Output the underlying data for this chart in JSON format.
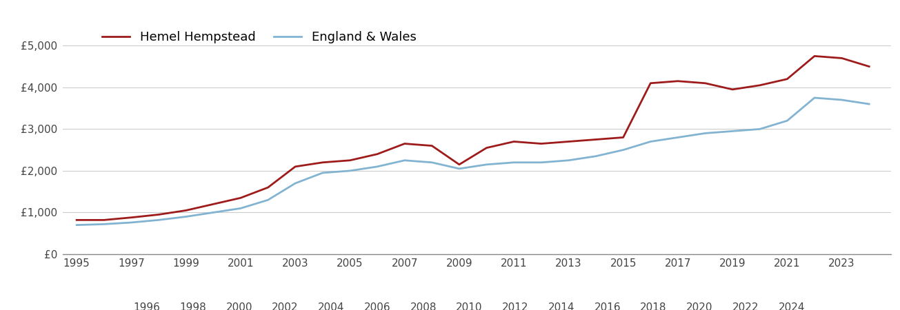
{
  "hemel_years": [
    1995,
    1996,
    1997,
    1998,
    1999,
    2000,
    2001,
    2002,
    2003,
    2004,
    2005,
    2006,
    2007,
    2008,
    2009,
    2010,
    2011,
    2012,
    2013,
    2014,
    2015,
    2016,
    2017,
    2018,
    2019,
    2020,
    2021,
    2022,
    2023,
    2024
  ],
  "hemel_values": [
    820,
    820,
    880,
    950,
    1050,
    1200,
    1350,
    1600,
    2100,
    2200,
    2250,
    2400,
    2650,
    2600,
    2150,
    2550,
    2700,
    2650,
    2700,
    2750,
    2800,
    4100,
    4150,
    4100,
    3950,
    4050,
    4200,
    4750,
    4700,
    4500
  ],
  "england_years": [
    1995,
    1996,
    1997,
    1998,
    1999,
    2000,
    2001,
    2002,
    2003,
    2004,
    2005,
    2006,
    2007,
    2008,
    2009,
    2010,
    2011,
    2012,
    2013,
    2014,
    2015,
    2016,
    2017,
    2018,
    2019,
    2020,
    2021,
    2022,
    2023,
    2024
  ],
  "england_values": [
    700,
    720,
    760,
    820,
    900,
    1000,
    1100,
    1300,
    1700,
    1950,
    2000,
    2100,
    2250,
    2200,
    2050,
    2150,
    2200,
    2200,
    2250,
    2350,
    2500,
    2700,
    2800,
    2900,
    2950,
    3000,
    3200,
    3750,
    3700,
    3600
  ],
  "hemel_color": "#9e1b1b",
  "england_color": "#82b4d2",
  "hemel_label": "Hemel Hempstead",
  "england_label": "England & Wales",
  "ylim": [
    0,
    5500
  ],
  "yticks": [
    0,
    1000,
    2000,
    3000,
    4000,
    5000
  ],
  "ytick_labels": [
    "£0",
    "£1,000",
    "£2,000",
    "£3,000",
    "£4,000",
    "£5,000"
  ],
  "line_width": 2.0,
  "background_color": "#ffffff",
  "grid_color": "#cccccc",
  "legend_fontsize": 13,
  "tick_fontsize": 11,
  "tick_color": "#444444",
  "xlim_left": 1994.5,
  "xlim_right": 2024.8
}
